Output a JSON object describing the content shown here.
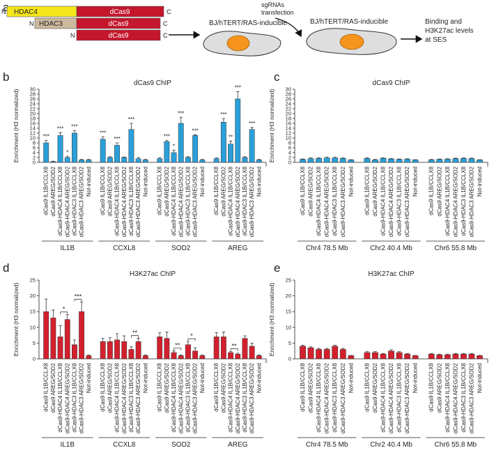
{
  "diagram": {
    "panel": "a",
    "constructs": [
      {
        "n": "N",
        "domain": "HDAC4",
        "dcas9": "dCas9",
        "c": "C"
      },
      {
        "n": "N",
        "domain": "HDAC3",
        "dcas9": "dCas9",
        "c": "C"
      },
      {
        "n": "N",
        "dcas9": "dCas9",
        "c": "C"
      }
    ],
    "cell_label_left": "BJ/hTERT/RAS-inducible",
    "transfection": [
      "sgRNAs",
      "transfection"
    ],
    "cell_label_right": "BJ/hTERT/RAS-inducible",
    "readout": [
      "Binding and",
      "H3K27ac levels",
      "at SES"
    ]
  },
  "chart_data": [
    {
      "type": "bar",
      "panel": "b",
      "title": "dCas9 ChIP",
      "y_label": "Enrichment (H3 normalized)",
      "color": "#2b9fd9",
      "ylim": [
        0,
        30
      ],
      "yticks": [
        0,
        2,
        4,
        6,
        8,
        10,
        12,
        14,
        16,
        18,
        20,
        22,
        24,
        26,
        28,
        30
      ],
      "significance_brackets": false,
      "groups": [
        {
          "name": "IL1B",
          "categories": [
            "dCas9 IL1B/CCLX8",
            "dCas9 AREG/SOD2",
            "dCas9-HDAC4 IL1B/CCLX8",
            "dCas9-HDAC4 AREG/SOD2",
            "dCas9-HDAC3 IL1B/CCLX8",
            "dCas9-HDAC3 AREG/SOD2",
            "Not-induced"
          ],
          "values": [
            8,
            0.3,
            11,
            2,
            12,
            1,
            1
          ],
          "errors": [
            1,
            0.2,
            1.2,
            0.5,
            1,
            0.2,
            0.2
          ],
          "significance": [
            "***",
            null,
            "***",
            "*",
            "***",
            null,
            null
          ]
        },
        {
          "name": "CCXL8",
          "categories": [
            "dCas9 IL1B/CCLX8",
            "dCas9 AREG/SOD2",
            "dCas9-HDAC4 IL1B/CCLX8",
            "dCas9-HDAC4 AREG/SOD2",
            "dCas9-HDAC3 IL1B/CCLX8",
            "dCas9-HDAC3 AREG/SOD2",
            "Not-induced"
          ],
          "values": [
            9.5,
            2,
            7,
            2,
            13.5,
            1.5,
            1
          ],
          "errors": [
            1,
            0.3,
            1,
            0.2,
            2.5,
            0.5,
            0.2
          ],
          "significance": [
            "***",
            null,
            "***",
            null,
            "***",
            null,
            null
          ]
        },
        {
          "name": "SOD2",
          "categories": [
            "dCas9 IL1B/CCLX8",
            "dCas9 AREG/SOD2",
            "dCas9-HDAC4 IL1B/CCLX8",
            "dCas9-HDAC4 AREG/SOD2",
            "dCas9-HDAC3 IL1B/CCLX8",
            "dCas9-HDAC3 AREG/SOD2",
            "Not-induced"
          ],
          "values": [
            1.5,
            8.5,
            4,
            16,
            2,
            11,
            1
          ],
          "errors": [
            0.4,
            0.5,
            1,
            2.5,
            0.3,
            0.3,
            0.2
          ],
          "significance": [
            null,
            "***",
            "*",
            "***",
            null,
            "***",
            null
          ]
        },
        {
          "name": "AREG",
          "categories": [
            "dCas9 IL1B/CCLX8",
            "dCas9 AREG/SOD2",
            "dCas9-HDAC4 IL1B/CCLX8",
            "dCas9-HDAC4 AREG/SOD2",
            "dCas9-HDAC3 IL1B/CCLX8",
            "dCas9-HDAC3 AREG/SOD2",
            "Not-induced"
          ],
          "values": [
            1.5,
            16.5,
            7.5,
            26,
            2,
            13.5,
            1
          ],
          "errors": [
            0.3,
            1.5,
            1.2,
            3,
            0.3,
            0.8,
            0.2
          ],
          "significance": [
            null,
            "***",
            "**",
            "***",
            null,
            "***",
            null
          ]
        }
      ]
    },
    {
      "type": "bar",
      "panel": "c",
      "title": "dCas9 ChIP",
      "y_label": "Enrichment (H3 normalized)",
      "color": "#2b9fd9",
      "ylim": [
        0,
        30
      ],
      "yticks": [
        0,
        2,
        4,
        6,
        8,
        10,
        12,
        14,
        16,
        18,
        20,
        22,
        24,
        26,
        28,
        30
      ],
      "significance_brackets": false,
      "groups": [
        {
          "name": "Chr4 78.5 Mb",
          "categories": [
            "dCas9 IL1B/CCLX8",
            "dCas9 AREG/SOD2",
            "dCas9-HDAC4 IL1B/CCLX8",
            "dCas9-HDAC4 AREG/SOD2",
            "dCas9-HDAC3 IL1B/CCLX8",
            "dCas9-HDAC3 AREG/SOD2",
            "Not-induced"
          ],
          "values": [
            1.2,
            1.5,
            1.6,
            1.8,
            1.8,
            1.6,
            1
          ],
          "errors": [
            0.2,
            0.3,
            0.3,
            0.3,
            0.3,
            0.2,
            0.1
          ],
          "significance": [
            null,
            null,
            null,
            null,
            null,
            null,
            null
          ]
        },
        {
          "name": "Chr2 40.4 Mb",
          "categories": [
            "dCas9 IL1B/CCLX8",
            "dCas9 AREG/SOD2",
            "dCas9-HDAC4 IL1B/CCLX8",
            "dCas9-HDAC4 AREG/SOD2",
            "dCas9-HDAC3 IL1B/CCLX8",
            "dCas9-HDAC3 AREG/SOD2",
            "Not-induced"
          ],
          "values": [
            1.6,
            1,
            1.7,
            1.4,
            1.2,
            1.3,
            1
          ],
          "errors": [
            0.3,
            0.2,
            0.2,
            0.2,
            0.2,
            0.2,
            0.1
          ],
          "significance": [
            null,
            null,
            null,
            null,
            null,
            null,
            null
          ]
        },
        {
          "name": "Chr6 55.8 Mb",
          "categories": [
            "dCas9 IL1B/CCLX8",
            "dCas9 AREG/SOD2",
            "dCas9-HDAC4 IL1B/CCLX8",
            "dCas9-HDAC4 AREG/SOD2",
            "dCas9-HDAC3 IL1B/CCLX8",
            "dCas9-HDAC3 AREG/SOD2",
            "Not-induced"
          ],
          "values": [
            1,
            1.2,
            1.3,
            1.5,
            1.6,
            1.5,
            1
          ],
          "errors": [
            0.2,
            0.2,
            0.2,
            0.2,
            0.2,
            0.2,
            0.1
          ],
          "significance": [
            null,
            null,
            null,
            null,
            null,
            null,
            null
          ]
        }
      ]
    },
    {
      "type": "bar",
      "panel": "d",
      "title": "H3K27ac ChIP",
      "y_label": "Enrichment (H3 normalized)",
      "color": "#d3202e",
      "ylim": [
        0,
        25
      ],
      "yticks": [
        0,
        5,
        10,
        15,
        20,
        25
      ],
      "significance_brackets": true,
      "groups": [
        {
          "name": "IL1B",
          "categories": [
            "dCas9 IL1B/CCLX8",
            "dCas9 AREG/SOD2",
            "dCas9-HDAC4 IL1B/CCLX8",
            "dCas9-HDAC4 AREG/SOD2",
            "dCas9-HDAC3 IL1B/CCLX8",
            "dCas9-HDAC3 AREG/SOD2",
            "Not-induced"
          ],
          "values": [
            15,
            13,
            7,
            12.5,
            4.5,
            15,
            1
          ],
          "errors": [
            4,
            2.5,
            3.5,
            1.5,
            1.5,
            3,
            0.2
          ],
          "significance": [
            null,
            null,
            null,
            "*",
            null,
            "***",
            null
          ]
        },
        {
          "name": "CCXL8",
          "categories": [
            "dCas9 IL1B/CCLX8",
            "dCas9 AREG/SOD2",
            "dCas9-HDAC4 IL1B/CCLX8",
            "dCas9-HDAC4 AREG/SOD2",
            "dCas9-HDAC3 IL1B/CCLX8",
            "dCas9-HDAC3 AREG/SOD2",
            "Not-induced"
          ],
          "values": [
            5.5,
            5.5,
            6,
            5.5,
            3,
            5.5,
            1
          ],
          "errors": [
            1,
            1.2,
            2,
            1.8,
            0.8,
            1,
            0.2
          ],
          "significance": [
            null,
            null,
            null,
            null,
            null,
            "**",
            null
          ]
        },
        {
          "name": "SOD2",
          "categories": [
            "dCas9 IL1B/CCLX8",
            "dCas9 AREG/SOD2",
            "dCas9-HDAC4 IL1B/CCLX8",
            "dCas9-HDAC4 AREG/SOD2",
            "dCas9-HDAC3 IL1B/CCLX8",
            "dCas9-HDAC3 AREG/SOD2",
            "Not-induced"
          ],
          "values": [
            7,
            6.5,
            2,
            1,
            4.5,
            2.5,
            1
          ],
          "errors": [
            1.3,
            2,
            0.5,
            0.2,
            1,
            1,
            0.2
          ],
          "significance": [
            null,
            null,
            null,
            "**",
            null,
            "*",
            null
          ]
        },
        {
          "name": "AREG",
          "categories": [
            "dCas9 IL1B/CCLX8",
            "dCas9 AREG/SOD2",
            "dCas9-HDAC4 IL1B/CCLX8",
            "dCas9-HDAC4 AREG/SOD2",
            "dCas9-HDAC3 IL1B/CCLX8",
            "dCas9-HDAC3 AREG/SOD2",
            "Not-induced"
          ],
          "values": [
            7,
            7,
            2,
            1.5,
            6.5,
            4,
            1
          ],
          "errors": [
            1.3,
            1.5,
            0.3,
            0.3,
            0.8,
            1,
            0.2
          ],
          "significance": [
            null,
            null,
            null,
            "**",
            null,
            null,
            null
          ]
        }
      ]
    },
    {
      "type": "bar",
      "panel": "e",
      "title": "H3K27ac ChIP",
      "y_label": "Enrichment (H3 normalized)",
      "color": "#d3202e",
      "ylim": [
        0,
        25
      ],
      "yticks": [
        0,
        5,
        10,
        15,
        20,
        25
      ],
      "significance_brackets": true,
      "groups": [
        {
          "name": "Chr4 78.5 Mb",
          "categories": [
            "dCas9 IL1B/CCLX8",
            "dCas9 AREG/SOD2",
            "dCas9-HDAC4 IL1B/CCLX8",
            "dCas9-HDAC4 AREG/SOD2",
            "dCas9-HDAC3 IL1B/CCLX8",
            "dCas9-HDAC3 AREG/SOD2",
            "Not-induced"
          ],
          "values": [
            4,
            3.5,
            3,
            3,
            4,
            3,
            1
          ],
          "errors": [
            0.3,
            0.3,
            0.3,
            0.3,
            0.3,
            0.3,
            0.1
          ],
          "significance": [
            null,
            null,
            null,
            null,
            null,
            null,
            null
          ]
        },
        {
          "name": "Chr2 40.4 Mb",
          "categories": [
            "dCas9 IL1B/CCLX8",
            "dCas9 AREG/SOD2",
            "dCas9-HDAC4 IL1B/CCLX8",
            "dCas9-HDAC4 AREG/SOD2",
            "dCas9-HDAC3 IL1B/CCLX8",
            "dCas9-HDAC3 AREG/SOD2",
            "Not-induced"
          ],
          "values": [
            2,
            2,
            1.5,
            2.5,
            2,
            1.5,
            1
          ],
          "errors": [
            0.3,
            0.3,
            0.2,
            0.4,
            0.3,
            0.2,
            0.1
          ],
          "significance": [
            null,
            null,
            null,
            null,
            null,
            null,
            null
          ]
        },
        {
          "name": "Chr6 55.8 Mb",
          "categories": [
            "dCas9 IL1B/CCLX8",
            "dCas9 AREG/SOD2",
            "dCas9-HDAC4 IL1B/CCLX8",
            "dCas9-HDAC4 AREG/SOD2",
            "dCas9-HDAC3 IL1B/CCLX8",
            "dCas9-HDAC3 AREG/SOD2",
            "Not-induced"
          ],
          "values": [
            1.5,
            1.3,
            1.3,
            1.5,
            1.5,
            1.5,
            1
          ],
          "errors": [
            0.2,
            0.2,
            0.2,
            0.2,
            0.2,
            0.2,
            0.1
          ],
          "significance": [
            null,
            null,
            null,
            null,
            null,
            null,
            null
          ]
        }
      ]
    }
  ]
}
